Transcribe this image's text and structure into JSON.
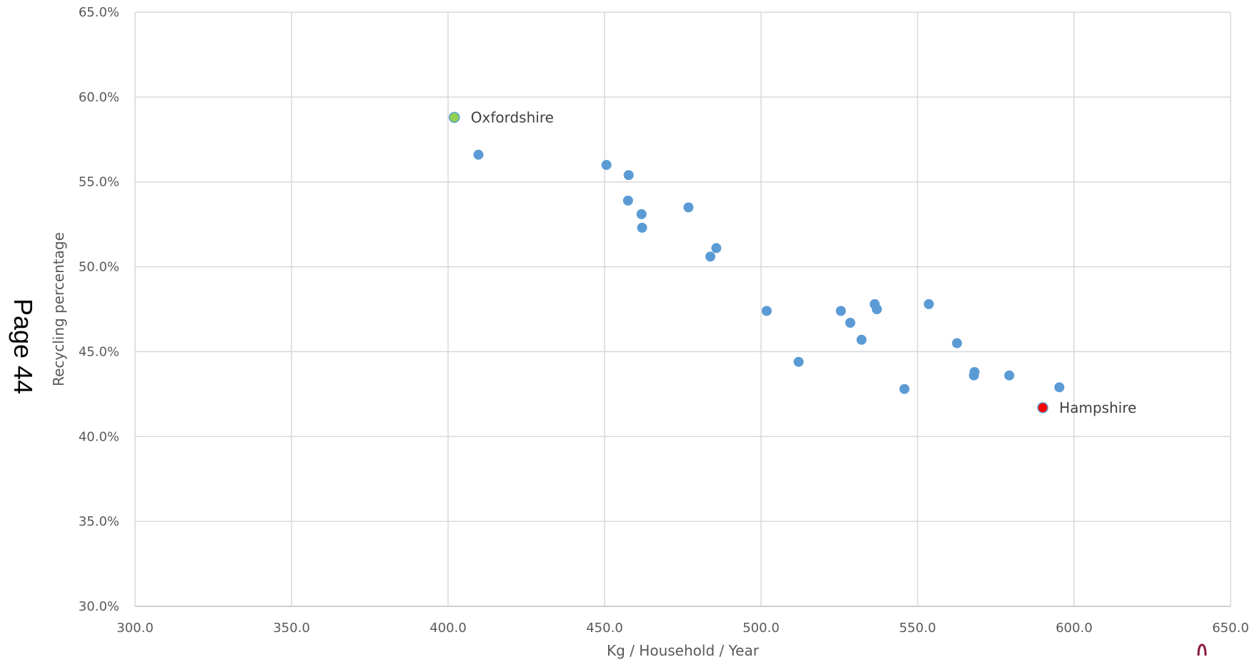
{
  "page_label": "Page 44",
  "chart_data": {
    "type": "scatter",
    "title": "",
    "xlabel": "Kg / Household / Year",
    "ylabel": "Recycling percentage",
    "xlim": [
      300,
      650
    ],
    "ylim": [
      30,
      65
    ],
    "x_ticks": [
      300,
      350,
      400,
      450,
      500,
      550,
      600,
      650
    ],
    "y_ticks": [
      30,
      35,
      40,
      45,
      50,
      55,
      60,
      65
    ],
    "x_tick_labels": [
      "300.0",
      "350.0",
      "400.0",
      "450.0",
      "500.0",
      "550.0",
      "600.0",
      "650.0"
    ],
    "y_tick_labels": [
      "30.0%",
      "35.0%",
      "40.0%",
      "45.0%",
      "50.0%",
      "55.0%",
      "60.0%",
      "65.0%"
    ],
    "grid": true,
    "default_color": "#5b9bd5",
    "points": [
      {
        "x": 402.0,
        "y": 58.8,
        "label": "Oxfordshire",
        "color": "#92d050"
      },
      {
        "x": 409.7,
        "y": 56.6
      },
      {
        "x": 450.6,
        "y": 56.0
      },
      {
        "x": 457.7,
        "y": 55.4
      },
      {
        "x": 457.5,
        "y": 53.9
      },
      {
        "x": 461.8,
        "y": 53.1
      },
      {
        "x": 462.0,
        "y": 52.3
      },
      {
        "x": 476.8,
        "y": 53.5
      },
      {
        "x": 485.7,
        "y": 51.1
      },
      {
        "x": 483.8,
        "y": 50.6
      },
      {
        "x": 501.8,
        "y": 47.4
      },
      {
        "x": 512.0,
        "y": 44.4
      },
      {
        "x": 525.5,
        "y": 47.4
      },
      {
        "x": 528.5,
        "y": 46.7
      },
      {
        "x": 532.1,
        "y": 45.7
      },
      {
        "x": 536.3,
        "y": 47.8
      },
      {
        "x": 537.0,
        "y": 47.5
      },
      {
        "x": 545.8,
        "y": 42.8
      },
      {
        "x": 553.6,
        "y": 47.8
      },
      {
        "x": 562.6,
        "y": 45.5
      },
      {
        "x": 568.2,
        "y": 43.8
      },
      {
        "x": 568.0,
        "y": 43.6
      },
      {
        "x": 579.3,
        "y": 43.6
      },
      {
        "x": 590.0,
        "y": 41.7,
        "label": "Hampshire",
        "color": "#ff0000"
      },
      {
        "x": 595.3,
        "y": 42.9
      }
    ]
  }
}
